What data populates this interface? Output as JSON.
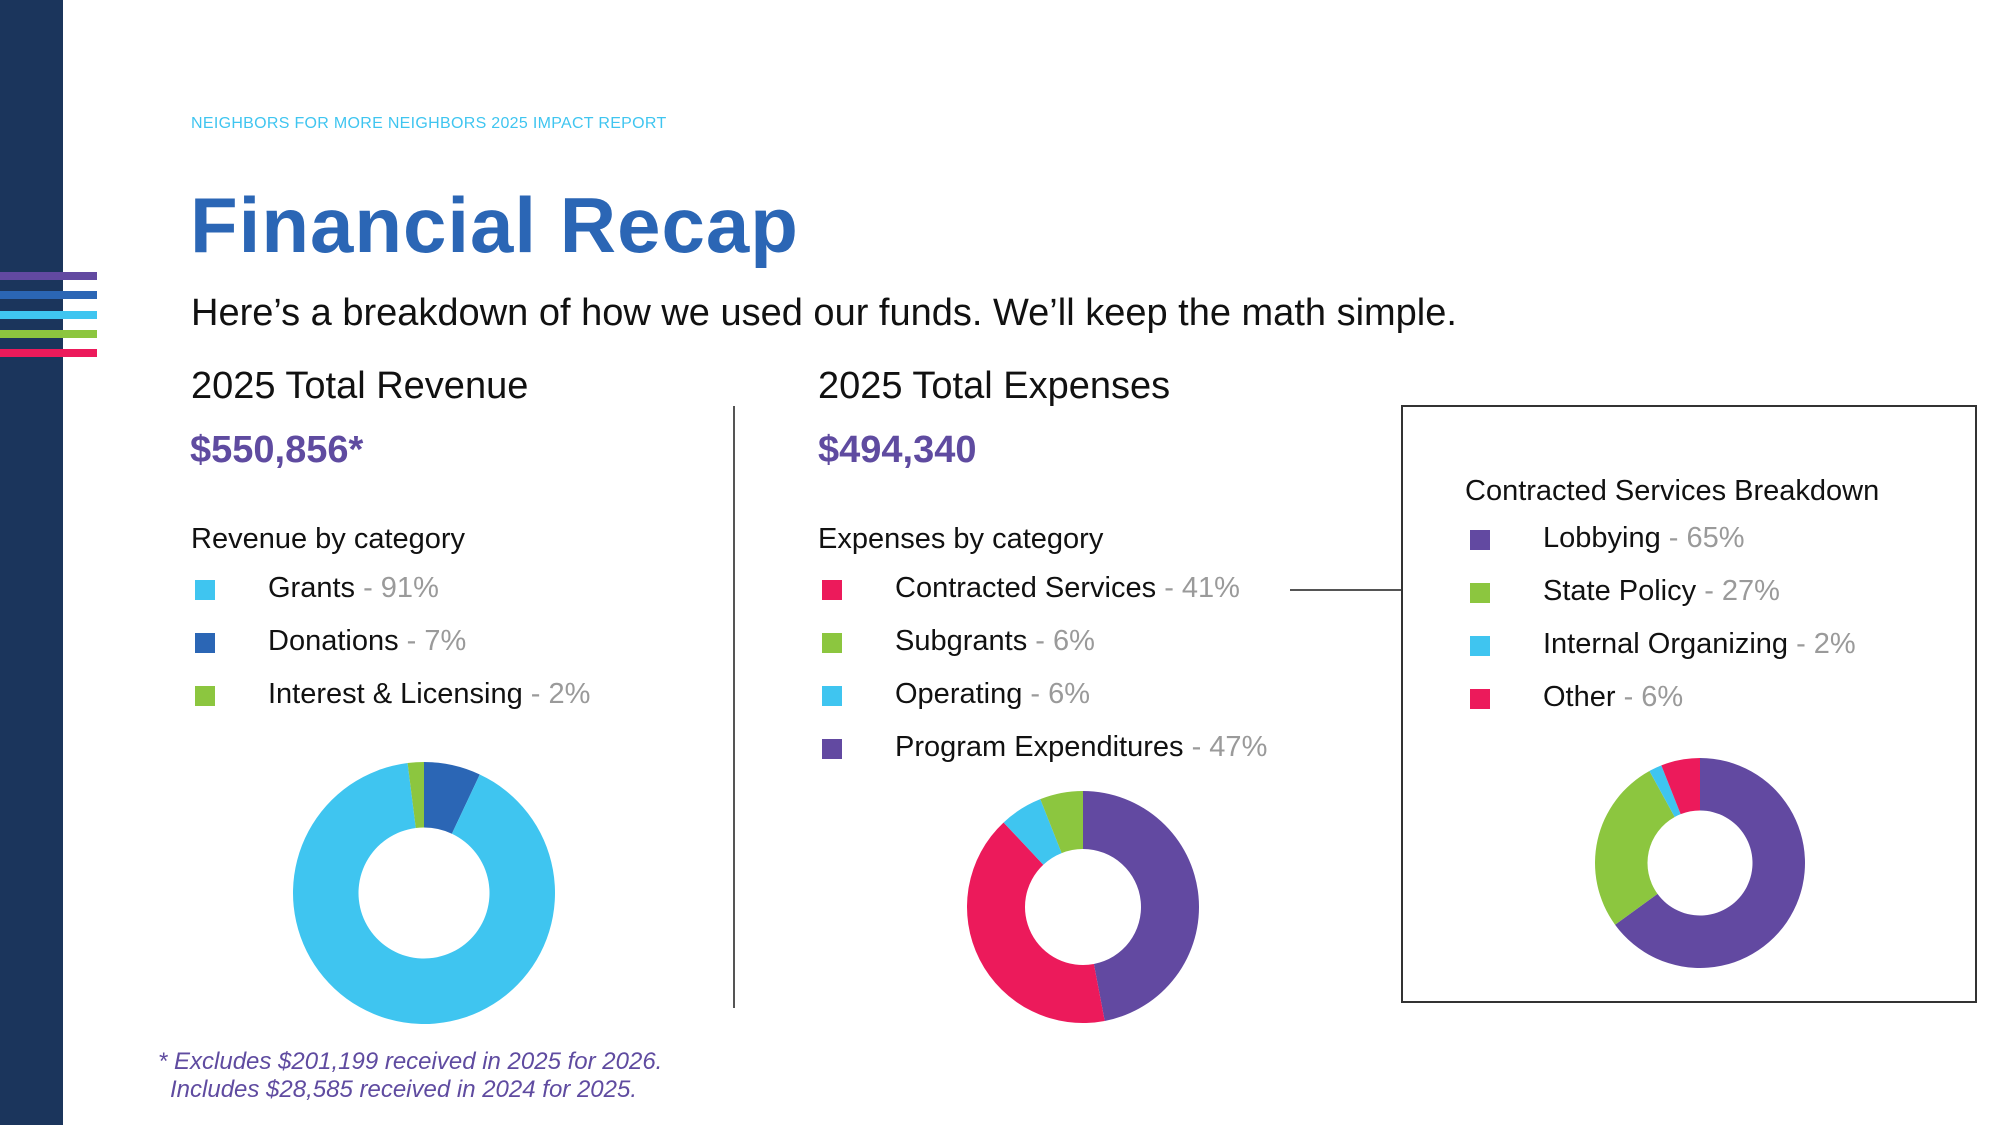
{
  "header": {
    "eyebrow": "NEIGHBORS FOR MORE NEIGHBORS 2025 IMPACT REPORT",
    "title": "Financial Recap",
    "subtitle": "Here’s a breakdown of how we used our funds. We’ll keep the math simple."
  },
  "colors": {
    "sidebar": "#1b355c",
    "title": "#2b66b5",
    "totals": "#5f4ba0",
    "light_blue": "#3fc5f0",
    "dark_blue": "#2b66b5",
    "green": "#8cc63f",
    "pink": "#ec1a5b",
    "purple": "#6249a1"
  },
  "stripes": [
    "#6249a1",
    "#2b66b5",
    "#3fc5f0",
    "#8cc63f",
    "#ec1a5b"
  ],
  "revenue": {
    "heading": "2025 Total Revenue",
    "total": "$550,856*",
    "category_heading": "Revenue by category",
    "items": [
      {
        "name": "Grants",
        "pct": "- 91%",
        "color": "#3fc5f0"
      },
      {
        "name": "Donations",
        "pct": "- 7%",
        "color": "#2b66b5"
      },
      {
        "name": "Interest & Licensing",
        "pct": "- 2%",
        "color": "#8cc63f"
      }
    ]
  },
  "expenses": {
    "heading": "2025 Total Expenses",
    "total": "$494,340",
    "category_heading": "Expenses by category",
    "items": [
      {
        "name": "Contracted Services",
        "pct": "- 41%",
        "color": "#ec1a5b"
      },
      {
        "name": "Subgrants",
        "pct": "- 6%",
        "color": "#8cc63f"
      },
      {
        "name": "Operating",
        "pct": "- 6%",
        "color": "#3fc5f0"
      },
      {
        "name": "Program Expenditures",
        "pct": "- 47%",
        "color": "#6249a1"
      }
    ]
  },
  "contracted": {
    "heading": "Contracted Services Breakdown",
    "items": [
      {
        "name": "Lobbying",
        "pct": "- 65%",
        "color": "#6249a1"
      },
      {
        "name": "State Policy",
        "pct": "- 27%",
        "color": "#8cc63f"
      },
      {
        "name": "Internal Organizing",
        "pct": "- 2%",
        "color": "#3fc5f0"
      },
      {
        "name": "Other",
        "pct": "- 6%",
        "color": "#ec1a5b"
      }
    ]
  },
  "footnote": {
    "line1": "* Excludes $201,199 received in 2025 for 2026.",
    "line2": "Includes $28,585 received in 2024 for 2025."
  },
  "chart_data": [
    {
      "type": "pie",
      "categories": [
        "Grants",
        "Donations",
        "Interest & Licensing"
      ],
      "values": [
        91,
        7,
        2
      ],
      "colors": [
        "#3fc5f0",
        "#2b66b5",
        "#8cc63f"
      ],
      "order": [
        "Donations",
        "Grants",
        "Interest & Licensing"
      ]
    },
    {
      "type": "pie",
      "categories": [
        "Program Expenditures",
        "Contracted Services",
        "Operating",
        "Subgrants"
      ],
      "values": [
        47,
        41,
        6,
        6
      ],
      "colors": [
        "#6249a1",
        "#ec1a5b",
        "#3fc5f0",
        "#8cc63f"
      ]
    },
    {
      "type": "pie",
      "categories": [
        "Lobbying",
        "State Policy",
        "Internal Organizing",
        "Other"
      ],
      "values": [
        65,
        27,
        2,
        6
      ],
      "colors": [
        "#6249a1",
        "#8cc63f",
        "#3fc5f0",
        "#ec1a5b"
      ]
    }
  ]
}
